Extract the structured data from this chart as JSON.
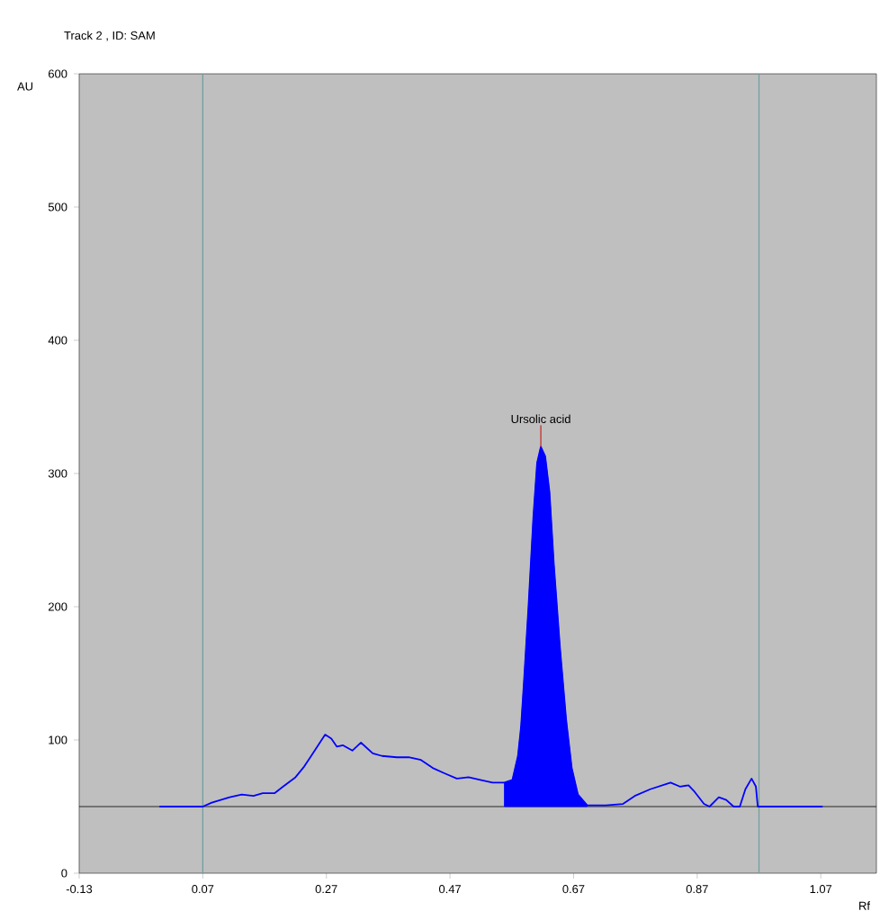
{
  "chart_data": {
    "type": "line",
    "title": "Track  2 , ID: SAM",
    "xlabel": "Rf",
    "ylabel": "AU",
    "xlim": [
      -0.13,
      1.16
    ],
    "ylim": [
      0,
      600
    ],
    "xticks": [
      -0.13,
      0.07,
      0.27,
      0.47,
      0.67,
      0.87,
      1.07
    ],
    "yticks": [
      0,
      100,
      200,
      300,
      400,
      500,
      600
    ],
    "ref_lines": [
      {
        "axis": "y",
        "value": 50,
        "color": "#000000"
      },
      {
        "axis": "x",
        "value": 0.07,
        "color": "#6e9c9c"
      },
      {
        "axis": "x",
        "value": 0.97,
        "color": "#6e9c9c"
      }
    ],
    "annotations": [
      {
        "text": "Ursolic acid",
        "x": 0.617,
        "y": 320
      }
    ],
    "series": [
      {
        "color": "#0000ff",
        "x": [
          0.0,
          0.07,
          0.0845,
          0.1135,
          0.133,
          0.152,
          0.167,
          0.186,
          0.2,
          0.22,
          0.234,
          0.244,
          0.258,
          0.268,
          0.278,
          0.287,
          0.297,
          0.312,
          0.326,
          0.345,
          0.36,
          0.384,
          0.403,
          0.423,
          0.442,
          0.461,
          0.481,
          0.5,
          0.519,
          0.539,
          0.558,
          0.571,
          0.58,
          0.585,
          0.59,
          0.597,
          0.605,
          0.611,
          0.617,
          0.624,
          0.631,
          0.638,
          0.648,
          0.658,
          0.667,
          0.677,
          0.692,
          0.722,
          0.75,
          0.769,
          0.794,
          0.827,
          0.842,
          0.856,
          0.866,
          0.881,
          0.89,
          0.905,
          0.917,
          0.929,
          0.939,
          0.948,
          0.958,
          0.965,
          0.968,
          1.073
        ],
        "values": [
          50,
          50,
          53,
          57,
          59,
          58,
          60,
          60,
          65,
          72,
          80,
          87,
          97,
          104,
          101,
          95,
          96,
          92,
          98,
          90,
          88,
          87,
          87,
          85,
          79,
          75,
          71,
          72,
          70,
          68,
          68,
          70,
          88,
          110,
          146,
          200,
          268,
          308,
          320,
          313,
          286,
          232,
          169,
          115,
          79,
          59,
          51,
          51,
          52,
          58,
          63,
          68,
          65,
          66,
          61,
          52,
          50,
          57,
          55,
          50,
          50,
          63,
          71,
          65,
          50,
          50
        ]
      },
      {
        "type": "area",
        "color": "#0000ff",
        "x": [
          0.558,
          0.558,
          0.571,
          0.58,
          0.585,
          0.59,
          0.597,
          0.605,
          0.611,
          0.617,
          0.624,
          0.631,
          0.638,
          0.648,
          0.658,
          0.667,
          0.677,
          0.692,
          0.692
        ],
        "values": [
          50,
          68,
          70,
          88,
          110,
          146,
          200,
          268,
          308,
          320,
          313,
          286,
          232,
          169,
          115,
          79,
          59,
          51,
          50
        ]
      }
    ]
  }
}
